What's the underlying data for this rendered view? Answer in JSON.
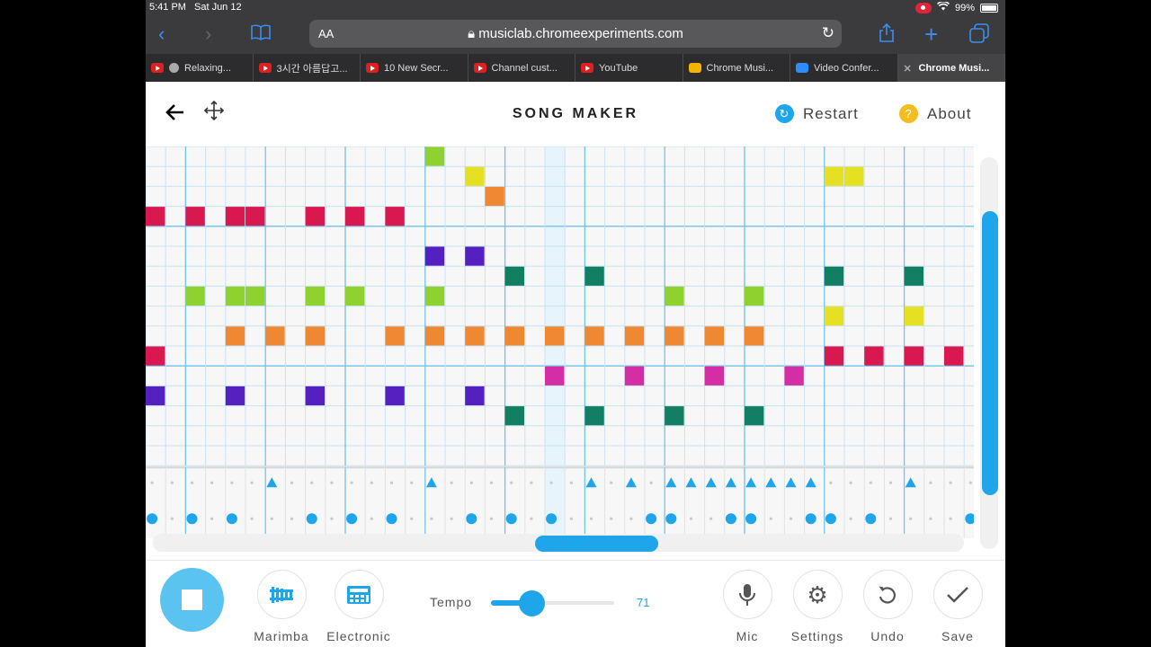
{
  "status": {
    "time": "5:41 PM",
    "date": "Sat Jun 12",
    "battery": "99%"
  },
  "browser": {
    "aa": "AA",
    "url": "musiclab.chromeexperiments.com",
    "tabs": [
      {
        "label": "Relaxing...",
        "icon": "youtube-icon"
      },
      {
        "label": "3시간 아름답고...",
        "icon": "youtube-icon"
      },
      {
        "label": "10 New Secr...",
        "icon": "youtube-icon"
      },
      {
        "label": "Channel cust...",
        "icon": "youtube-icon"
      },
      {
        "label": "YouTube",
        "icon": "youtube-icon"
      },
      {
        "label": "Chrome Musi...",
        "icon": "chrome-music-lab-icon"
      },
      {
        "label": "Video Confer...",
        "icon": "zoom-icon"
      },
      {
        "label": "Chrome Musi...",
        "icon": "close-icon"
      }
    ]
  },
  "header": {
    "title": "SONG MAKER",
    "restart": "Restart",
    "about": "About"
  },
  "grid": {
    "columns": 41,
    "melody_rows": 16,
    "bar_length": 4,
    "playhead_column": 20,
    "colors": {
      "red": "#d8184f",
      "orange": "#ee8833",
      "yellow": "#e6e023",
      "lime": "#8fd12f",
      "green": "#137f62",
      "magenta": "#d52da4",
      "purple": "#5520c0",
      "accent": "#1ea5ea",
      "line": "#c8e3f3",
      "barline": "#72c2ea",
      "bg": "#f4f4f4"
    },
    "notes": [
      {
        "row": 0,
        "cols": [
          14
        ],
        "color": "lime"
      },
      {
        "row": 1,
        "cols": [
          16,
          34,
          35
        ],
        "color": "yellow"
      },
      {
        "row": 2,
        "cols": [
          17
        ],
        "color": "orange"
      },
      {
        "row": 3,
        "cols": [
          0,
          2,
          4,
          5,
          8,
          10,
          12
        ],
        "color": "red"
      },
      {
        "row": 5,
        "cols": [
          14,
          16
        ],
        "color": "purple"
      },
      {
        "row": 6,
        "cols": [
          18,
          22,
          34,
          38
        ],
        "color": "green"
      },
      {
        "row": 7,
        "cols": [
          2,
          4,
          5,
          8,
          10,
          14,
          26,
          30
        ],
        "color": "lime"
      },
      {
        "row": 8,
        "cols": [
          34,
          38
        ],
        "color": "yellow"
      },
      {
        "row": 9,
        "cols": [
          4,
          6,
          8,
          12,
          14,
          16,
          18,
          20,
          22,
          24,
          26,
          28,
          30
        ],
        "color": "orange"
      },
      {
        "row": 10,
        "cols": [
          0,
          34,
          36,
          38,
          40
        ],
        "color": "red"
      },
      {
        "row": 11,
        "cols": [
          20,
          24,
          28,
          32
        ],
        "color": "magenta"
      },
      {
        "row": 12,
        "cols": [
          0,
          4,
          8,
          12,
          16
        ],
        "color": "purple"
      },
      {
        "row": 13,
        "cols": [
          18,
          22,
          26,
          30
        ],
        "color": "green"
      }
    ],
    "triangles": [
      6,
      14,
      22,
      24,
      26,
      27,
      28,
      29,
      30,
      31,
      32,
      33,
      38
    ],
    "circles": [
      0,
      2,
      4,
      8,
      10,
      12,
      16,
      18,
      20,
      25,
      26,
      29,
      30,
      33,
      34,
      36,
      41
    ]
  },
  "footer": {
    "marimba": "Marimba",
    "electronic": "Electronic",
    "tempo_label": "Tempo",
    "tempo_value": "71",
    "tempo_fraction": 0.33,
    "mic": "Mic",
    "settings": "Settings",
    "undo": "Undo",
    "save": "Save"
  }
}
